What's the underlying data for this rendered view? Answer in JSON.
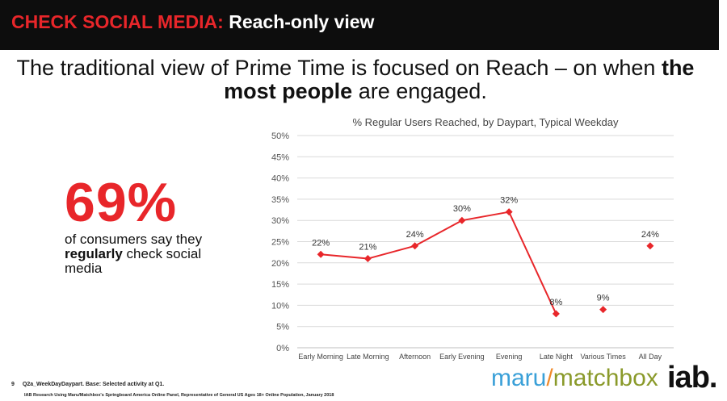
{
  "header": {
    "accent": "CHECK SOCIAL MEDIA:",
    "title": "Reach-only view"
  },
  "headline": {
    "part1": "The traditional view of Prime Time is focused on Reach – on when ",
    "bold": "the most people",
    "part2": " are engaged."
  },
  "stat": {
    "value": "69%",
    "line1": "of consumers say they ",
    "bold": "regularly",
    "line2": " check social media"
  },
  "chart_data": {
    "type": "line",
    "title": "% Regular Users Reached, by Daypart, Typical Weekday",
    "categories": [
      "Early Morning",
      "Late Morning",
      "Afternoon",
      "Early Evening",
      "Evening",
      "Late Night",
      "Various Times",
      "All Day"
    ],
    "values": [
      22,
      21,
      24,
      30,
      32,
      8,
      9,
      24
    ],
    "data_labels": [
      "22%",
      "21%",
      "24%",
      "30%",
      "32%",
      "8%",
      "9%",
      "24%"
    ],
    "connected": [
      true,
      true,
      true,
      true,
      true,
      true,
      false,
      false
    ],
    "ylim": [
      0,
      50
    ],
    "yticks": [
      "0%",
      "5%",
      "10%",
      "15%",
      "20%",
      "25%",
      "30%",
      "35%",
      "40%",
      "45%",
      "50%"
    ],
    "grid": true,
    "color": "#e8262a"
  },
  "footer": {
    "page": "9",
    "note": "Q2a_WeekDayDaypart. Base: Selected activity at Q1.",
    "source": "IAB Research Using Maru/Matchbox's Springboard America Online Panel, Representative of General US Ages 18+ Online Population, January 2018"
  },
  "logos": {
    "maru1": "maru",
    "slash": "/",
    "maru2": "matchbox",
    "iab": "iab."
  },
  "colors": {
    "accent": "#e8262a",
    "bar": "#0d0d0d"
  }
}
